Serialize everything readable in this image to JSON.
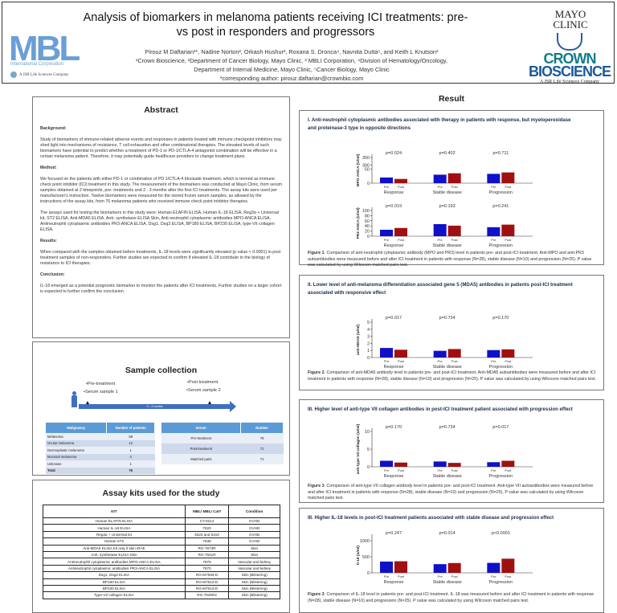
{
  "header": {
    "title": "Analysis of biomarkers in melanoma patients receiving ICI treatments: pre- vs post in responders and progressors",
    "authors": "Pirouz M Daftarian¹*, Nadine Norton², Orkash Hushur³, Roxana S. Dronca⁴, Navnita Dutta⁵, and Keith L Knutson²",
    "affiliations": "¹Crown Bioscience, ²Department of Cancer Biology, Mayo Clinic, ³ MBLI Corporation, ⁴Division of Hematology/Oncology, Department of Internal Medicine, Mayo Clinic, ⁵Cancer Biology, Mayo Clinic",
    "corresponding": "*corresponding author:  pirouz.daftarian@crownbio.com",
    "logo_left": "MBL",
    "logo_left_sub": "International Corporation",
    "logo_left_parent": "A JSR Life Sciences Company",
    "logo_right_top": "MAYO CLINIC",
    "logo_right_crown": "CROWN",
    "logo_right_bio": "BIOSCIENCE",
    "logo_right_parent": "A JSR Life Sciences Company"
  },
  "abstract": {
    "title": "Abstract",
    "background_h": "Background:",
    "background": "Study of biomarkers of immune-related adverse events and responses in patients treated with immune checkpoint inhibitors may shed light into mechanisms of resistance, T cell exhaustion and other combinatorial therapies. The elevated levels of such biomarkers have potential to predict whether a treatment of PD-1 or PD-1/CTLA-4 antagonist combination will be effective in a certain melanoma patient. Therefore, it may potentially guide healthcare providers to change treatment plans.",
    "method_h": "Method:",
    "method": "We focused on the patients with either PD-1 or combination of PD 1/CTLA-4 blockade treatment, which is termed as immune check point inhibitor (ICI) treatment in this study. The measurement of the biomarkers was conducted at Mayo Clinic, from serum samples obtained at 2 timepoints, pre- treatments and 2 - 3 months after the first ICI treatments. The assay kits were used per manufacturer's instruction. Twelve biomarkers were measured for the stored frozen serum samples, as allowed by the instructions of the assay kits, from 76 melanoma patients who received immune check point inhibitor therapies.",
    "method2": "The assays used for testing the biomarkers in this study were: Human ELAFIN ELISA, Human IL-18 ELISA, Reg3α + Universal kit, ST2 ELISA, Anti-MDA5 ELISA, Anti- synthetase ELISA Skin, Anti-neutrophil cytoplasmic antibodies MPO-ANCA ELISA, Antineutrophil cytoplasmic antibodies PR3-ANCA ELISA, Dsg1, Dsg3 ELISA, BP180 ELISA, BP230 ELISA, type-VII collagen ELISA.",
    "results_h": "Results:",
    "results": "When compared with the samples obtained before treatments, IL-18 levels were significantly elevated (p value < 0.0001) in post treatment samples of non-responders. Further studies are expected to confirm if elevated IL-18 contribute to the biology of resistance to ICI therapies.",
    "conclusion_h": "Conclusion:",
    "conclusion": "IL-18 emerged as a potential prognostic biomarker to monitor the patients after ICI treatments. Further studies on a larger cohort is expected to further confirm the conclusion."
  },
  "sample": {
    "title": "Sample collection",
    "pre1": "•Pre-treatment",
    "pre2": "•Serum sample 1",
    "post1": "•Post treatment",
    "post2": "•Serum sample 2",
    "interval": "~2 - 3 months",
    "t1_headers": [
      "Malignancy",
      "Number of patients"
    ],
    "t1_rows": [
      [
        "Melanoma",
        "58"
      ],
      [
        "Ocular melanoma",
        "12"
      ],
      [
        "Desmoplastic melanoma",
        "1"
      ],
      [
        "Mucosal melanoma",
        "4"
      ],
      [
        "Unknown",
        "1"
      ],
      [
        "Total",
        "76"
      ]
    ],
    "t2_headers": [
      "Serum",
      "Number"
    ],
    "t2_rows": [
      [
        "Pre-treatment",
        "76"
      ],
      [
        "Post-treatment",
        "71"
      ],
      [
        "Matched pairs",
        "71"
      ]
    ]
  },
  "kits": {
    "title": "Assay kits used for the study",
    "headers": [
      "KIT",
      "MBL/ MBLI Cat#",
      "Condition"
    ],
    "rows": [
      [
        "Human ELAFIN ELISA",
        "CY-8214",
        "GVHD"
      ],
      [
        "Human IL-18 ELISA",
        "7620",
        "GVHD"
      ],
      [
        "Reg3α + Universal kit",
        "5323 and 5310",
        "GVHD"
      ],
      [
        "Human ST2",
        "7638",
        "GVHD"
      ],
      [
        "Anti-MDA5 ELISA Kit only if skin iRAE",
        "RG-7873R",
        "Skin"
      ],
      [
        "Anti- synthetase ELISA Skin",
        "RG-7841R",
        "Skin"
      ],
      [
        "Antineutrophil cytoplasmic antibodies MPO-ANCA ELISA",
        "7875",
        "Vascular and kidney"
      ],
      [
        "Antineutrophil cytoplasmic antibodies PR3-ANCA ELISA",
        "7870",
        "Vascular and kidney"
      ],
      [
        "Dsg1, Dsg3 ELISA",
        "RG-M7593-D",
        "Skin (Blistering)"
      ],
      [
        "BP180 ELISA",
        "RG-M7612-D",
        "Skin (Blistering)"
      ],
      [
        "BP230 ELISA",
        "RG-M7613-D",
        "Skin (Blistering)"
      ],
      [
        "Type-VII collagen ELISA",
        "RG-7845R2",
        "Skin (Blistering)"
      ]
    ]
  },
  "result": {
    "title": "Result",
    "s1_heading": "I. Anti-neutrophil cytoplasmic antibodies associated with therapy in patients with response, but myeloperoxidase and proteinase-3 type in opposite directions",
    "s1_fig": "Figure 1",
    "s1_caption": ". Comparison of anti-neutrophil cytoplasmic antibody (MPO and PR3) level in patients pre- and post-ICI treatment. Anti-MPO and anti-PR3 autoantibodies were measured before and after ICI treatment in patients with response (N=28), stable disease (N=10) and progression (N=25). P value was calculated by using Wilcoxon matched pairs test.",
    "s2_heading": "II. Lower level of anti-melanoma differentiation associated gene 5 (MDA5) antibodies in patients post-ICI treatment associated with responsive effect",
    "s2_fig": "Figure 2",
    "s2_caption": ". Comparison of anti-MDA5 antibody level in patients pre- and post-ICI treatment. Anti-MDA5 autoantibodies were measured before and after ICI treatment in patients with response (N=28), stable disease (N=10) and progression (N=25). P value was calculated by using Wilcoxon matched pairs test.",
    "s3_heading": "III. Higher level of anti-type VII collagen antibodies in post-ICI treatment patient associated with progression effect",
    "s3_fig": "Figure 3",
    "s3_caption": ". Comparison of anti-type VII collagen antibody level in patients pre- and post-ICI treatment. Anti-type VII autoantibodies were measured before and after ICI treatment in patients with response (N=28), stable disease (N=10) and progression (N=25). P value was calculated by using Wilcoxon matched pairs test.",
    "s4_heading": "III. Higher IL-18 levels in post-ICI treatment patients associated with stable disease and progression effect",
    "s4_fig": "Figure 3",
    "s4_caption": ". Comparison of IL-18 level in patients pre- and post-ICI treatment. IL-18 was measured before and after ICI treatment in patients with response (N=28), stable disease (N=10) and progression (N=25). P value was calculated by using Wilcoxon matched pairs test."
  },
  "colors": {
    "pre": "#1010c8",
    "post": "#a01010",
    "table_header": "#5b9bd5"
  },
  "chart_data": [
    {
      "id": "mpo",
      "type": "bar",
      "ylabel": "MPO ANCA (U/ml)",
      "yticks": [
        0,
        50,
        300,
        350
      ],
      "ybreak": [
        50,
        300
      ],
      "ylim": [
        0,
        350
      ],
      "categories": [
        "Response",
        "Stable disease",
        "Progression"
      ],
      "sublabels": [
        "Pre",
        "Post"
      ],
      "p_values": [
        "p=0.024",
        "p=0.402",
        "p=0.711"
      ],
      "series": [
        {
          "name": "Pre",
          "values": [
            20,
            30,
            33
          ]
        },
        {
          "name": "Post",
          "values": [
            15,
            35,
            38
          ]
        }
      ]
    },
    {
      "id": "pr3",
      "type": "bar",
      "ylabel": "PR3 ANCA (U/ml)",
      "yticks": [
        0,
        20,
        40,
        60,
        80,
        100
      ],
      "ylim": [
        0,
        100
      ],
      "categories": [
        "Response",
        "Stable disease",
        "Progression"
      ],
      "sublabels": [
        "Pre",
        "Post"
      ],
      "p_values": [
        "p=0.019",
        "p=0.193",
        "p=0.241"
      ],
      "series": [
        {
          "name": "Pre",
          "values": [
            25,
            47,
            35
          ]
        },
        {
          "name": "Post",
          "values": [
            32,
            41,
            45
          ]
        }
      ]
    },
    {
      "id": "mda5",
      "type": "bar",
      "ylabel": "anti-MDA5 (u/ml)",
      "yticks": [
        0,
        1,
        2,
        3,
        4,
        5
      ],
      "ylim": [
        0,
        5
      ],
      "categories": [
        "Response",
        "Stable disease",
        "Progression"
      ],
      "sublabels": [
        "Pre",
        "Post"
      ],
      "p_values": [
        "p=0.017",
        "p=0.734",
        "p=0.170"
      ],
      "series": [
        {
          "name": "Pre",
          "values": [
            1.35,
            0.95,
            1.05
          ]
        },
        {
          "name": "Post",
          "values": [
            1.1,
            1.2,
            1.15
          ]
        }
      ]
    },
    {
      "id": "col7",
      "type": "bar",
      "ylabel": "anti-type VII collagen (u/ml)",
      "yticks": [
        0,
        5,
        10
      ],
      "ylim": [
        0,
        10
      ],
      "categories": [
        "Response",
        "Stable disease",
        "Progression"
      ],
      "sublabels": [
        "Pre",
        "Post"
      ],
      "p_values": [
        "p=0.170",
        "p=0.734",
        "p=0.017"
      ],
      "series": [
        {
          "name": "Pre",
          "values": [
            1.7,
            1.5,
            1.3
          ]
        },
        {
          "name": "Post",
          "values": [
            1.2,
            1.1,
            1.7
          ]
        }
      ]
    },
    {
      "id": "il18",
      "type": "bar",
      "ylabel": "Il-18 (u/ml)",
      "yticks": [
        0,
        500,
        1000
      ],
      "ylim": [
        0,
        1100
      ],
      "categories": [
        "Response",
        "Stable disease",
        "Progression"
      ],
      "sublabels": [
        "Pre",
        "Post"
      ],
      "p_values": [
        "p=0.247",
        "p=0.014",
        "p<0.0001"
      ],
      "series": [
        {
          "name": "Pre",
          "values": [
            350,
            270,
            310
          ]
        },
        {
          "name": "Post",
          "values": [
            360,
            305,
            440
          ]
        }
      ]
    }
  ]
}
